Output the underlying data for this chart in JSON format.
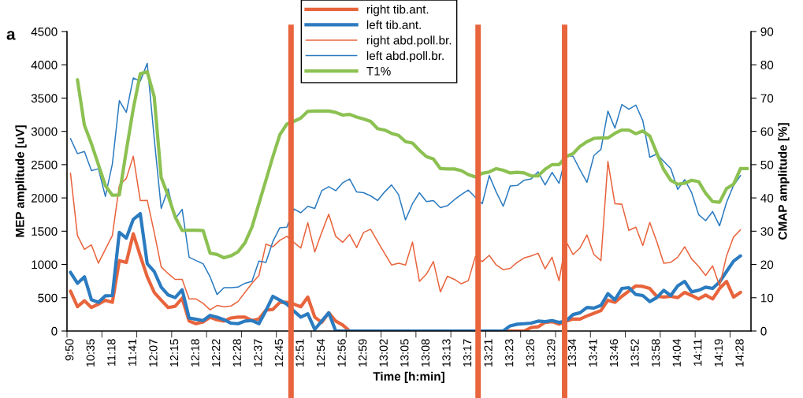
{
  "chart_data": {
    "type": "line",
    "xlabel": "Time [h:min]",
    "ylabel": "MEP amplitude [uV]",
    "y2label": "CMAP amplitude [%]",
    "annotations": [
      "a"
    ],
    "categories": [
      "9:50",
      null,
      null,
      "10:35",
      null,
      null,
      "11:18",
      null,
      null,
      "11:41",
      null,
      null,
      "12:07",
      null,
      null,
      "12:15",
      null,
      null,
      "12:18",
      null,
      null,
      "12:22",
      null,
      null,
      "12:28",
      null,
      null,
      "12:37",
      null,
      null,
      "12:45",
      null,
      null,
      "12:51",
      null,
      null,
      "12:54",
      null,
      null,
      "12:56",
      null,
      null,
      "12:59",
      null,
      null,
      "13:02",
      null,
      null,
      "13:05",
      null,
      null,
      "13:08",
      null,
      null,
      "13:13",
      null,
      null,
      "13:17",
      null,
      null,
      "13:21",
      null,
      null,
      "13:23",
      null,
      null,
      "13:26",
      null,
      null,
      "13:29",
      null,
      null,
      "13:34",
      null,
      null,
      "13:41",
      null,
      null,
      "13:46",
      null,
      null,
      "13:52",
      null,
      null,
      "13:58",
      null,
      null,
      "14:04",
      null,
      null,
      "14:11",
      null,
      null,
      "14:19",
      null,
      null,
      "14:28",
      null
    ],
    "series": [
      {
        "name": "right tib.ant.",
        "color": "#e8643c",
        "values": [
          600,
          365,
          455,
          353,
          404,
          463,
          431,
          1058,
          1031,
          1462,
          1129,
          815,
          580,
          463,
          353,
          372,
          494,
          149,
          110,
          137,
          208,
          169,
          149,
          196,
          208,
          208,
          157,
          180,
          314,
          325,
          431,
          431,
          404,
          365,
          510,
          208,
          129,
          274,
          149,
          90,
          0,
          0,
          0,
          0,
          0,
          0,
          0,
          0,
          0,
          0,
          0,
          0,
          0,
          0,
          0,
          0,
          0,
          0,
          0,
          0,
          0,
          0,
          0,
          0,
          0,
          0,
          51,
          63,
          129,
          141,
          102,
          149,
          180,
          180,
          227,
          267,
          306,
          463,
          431,
          521,
          600,
          678,
          670,
          639,
          521,
          510,
          521,
          502,
          580,
          533,
          482,
          541,
          482,
          639,
          745,
          510,
          580,
          null
        ]
      },
      {
        "name": "left tib.ant.",
        "color": "#2b7bc0",
        "values": [
          882,
          717,
          815,
          470,
          431,
          529,
          533,
          1482,
          1396,
          1678,
          1764,
          1011,
          894,
          659,
          541,
          502,
          619,
          196,
          176,
          157,
          235,
          208,
          169,
          118,
          110,
          149,
          157,
          110,
          306,
          521,
          463,
          404,
          300,
          208,
          259,
          24,
          149,
          274,
          0,
          0,
          0,
          0,
          0,
          0,
          0,
          0,
          0,
          0,
          0,
          0,
          0,
          0,
          0,
          0,
          0,
          0,
          0,
          0,
          0,
          0,
          0,
          0,
          0,
          78,
          102,
          110,
          118,
          149,
          141,
          157,
          129,
          149,
          247,
          274,
          353,
          345,
          384,
          561,
          470,
          639,
          651,
          549,
          533,
          443,
          502,
          612,
          533,
          678,
          745,
          588,
          612,
          659,
          639,
          737,
          894,
          1050,
          1129,
          null
        ]
      },
      {
        "name": "right abd.poll.br.",
        "color": "#e8643c",
        "values": [
          2372,
          1435,
          1227,
          1294,
          1019,
          1227,
          1435,
          2187,
          2293,
          2626,
          1960,
          1964,
          1482,
          964,
          862,
          776,
          776,
          482,
          482,
          416,
          318,
          384,
          365,
          376,
          443,
          580,
          717,
          835,
          1305,
          1266,
          1364,
          1423,
          1330,
          1247,
          1627,
          1188,
          1482,
          1756,
          1423,
          1333,
          1450,
          1254,
          1482,
          1529,
          1345,
          1168,
          992,
          1019,
          992,
          1337,
          745,
          855,
          1043,
          588,
          823,
          776,
          710,
          756,
          1117,
          1043,
          1137,
          992,
          921,
          941,
          1031,
          1098,
          1129,
          1168,
          933,
          1109,
          756,
          1345,
          1149,
          1247,
          1443,
          1149,
          1058,
          2548,
          1913,
          1905,
          1513,
          1560,
          1286,
          1631,
          1345,
          1019,
          1031,
          1109,
          1266,
          1082,
          972,
          835,
          980,
          678,
          1129,
          1411,
          1521,
          null
        ]
      },
      {
        "name": "left abd.poll.br.",
        "color": "#2b7bc0",
        "values": [
          2893,
          2666,
          2697,
          2411,
          2438,
          2023,
          2509,
          3461,
          3285,
          3802,
          3755,
          4022,
          2893,
          1842,
          2136,
          1686,
          1827,
          1109,
          1058,
          1011,
          815,
          549,
          651,
          651,
          659,
          717,
          745,
          1050,
          1031,
          1345,
          1552,
          1560,
          1835,
          1776,
          1874,
          1842,
          2109,
          2168,
          2109,
          2227,
          2285,
          2089,
          2078,
          2031,
          1960,
          2089,
          2195,
          2050,
          1670,
          1913,
          2078,
          1944,
          1960,
          1854,
          1882,
          1972,
          2050,
          2117,
          2011,
          1913,
          2336,
          2089,
          1874,
          2180,
          2187,
          2266,
          2285,
          2391,
          2195,
          2383,
          2219,
          2638,
          2626,
          2423,
          2234,
          2638,
          2728,
          3305,
          3050,
          3403,
          3332,
          3395,
          3160,
          2611,
          2658,
          2548,
          2442,
          2129,
          2274,
          2078,
          1748,
          1658,
          1795,
          1580,
          1933,
          2187,
          2336,
          null
        ]
      },
      {
        "name": "T1%",
        "color": "#8cc152",
        "axis": "y2",
        "values": [
          null,
          75.5,
          61.8,
          56.3,
          50.0,
          43.7,
          40.8,
          40.9,
          54.2,
          66.8,
          77.3,
          77.9,
          70.4,
          46.1,
          40.6,
          34.3,
          30.2,
          30.3,
          30.3,
          30.2,
          23.4,
          23.0,
          22.0,
          22.6,
          23.8,
          26.5,
          31.2,
          38.3,
          45.3,
          52.4,
          59.0,
          62.2,
          63.0,
          64.0,
          66.0,
          66.1,
          66.1,
          66.1,
          65.7,
          64.9,
          65.1,
          64.3,
          63.7,
          63.0,
          60.8,
          60.4,
          59.4,
          58.8,
          56.9,
          56.5,
          54.3,
          52.4,
          51.7,
          48.8,
          48.7,
          48.7,
          48.2,
          47.0,
          46.3,
          47.4,
          47.8,
          48.8,
          48.3,
          47.5,
          47.7,
          47.5,
          46.6,
          46.6,
          48.6,
          50.0,
          50.0,
          52.4,
          53.3,
          55.5,
          56.9,
          57.9,
          58.0,
          58.0,
          59.4,
          60.4,
          60.4,
          59.3,
          60.1,
          58.6,
          53.5,
          48.5,
          45.3,
          44.1,
          44.4,
          45.3,
          44.9,
          41.4,
          38.9,
          38.7,
          42.8,
          44.1,
          48.8,
          48.8
        ]
      }
    ],
    "ylim": [
      0,
      4500
    ],
    "yticks": [
      0,
      500,
      1000,
      1500,
      2000,
      2500,
      3000,
      3500,
      4000,
      4500
    ],
    "y2lim": [
      0,
      90
    ],
    "y2ticks": [
      0,
      10,
      20,
      30,
      40,
      50,
      60,
      70,
      80,
      90
    ],
    "grid": false,
    "legend": "top",
    "marker": "none",
    "line_style": "solid"
  }
}
